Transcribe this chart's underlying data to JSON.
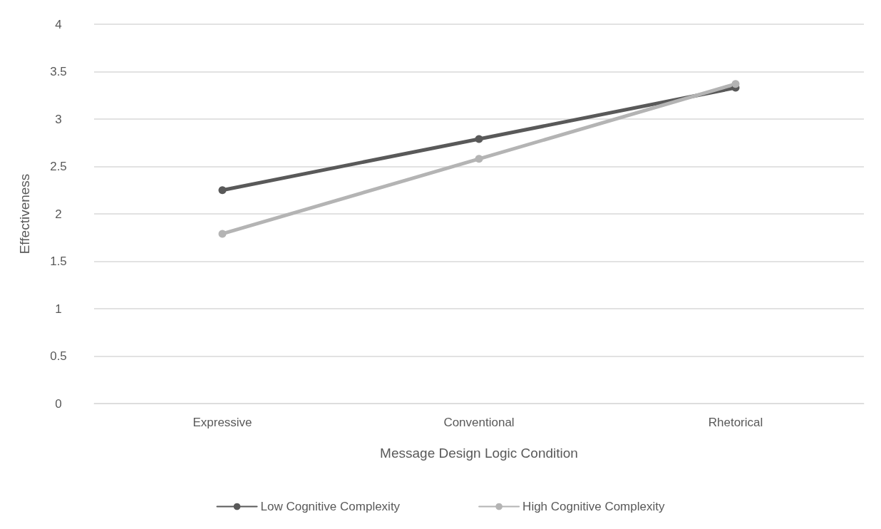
{
  "chart_data": {
    "type": "line",
    "xlabel": "Message Design Logic Condition",
    "ylabel": "Effectiveness",
    "categories": [
      "Expressive",
      "Conventional",
      "Rhetorical"
    ],
    "series": [
      {
        "name": "Low Cognitive Complexity",
        "color": "#595959",
        "values": [
          2.25,
          2.79,
          3.33
        ]
      },
      {
        "name": "High Cognitive Complexity",
        "color": "#b4b4b4",
        "values": [
          1.79,
          2.58,
          3.37
        ]
      }
    ],
    "ylim": [
      0,
      4
    ],
    "yticks": [
      0,
      0.5,
      1,
      1.5,
      2,
      2.5,
      3,
      3.5,
      4
    ],
    "grid": "y",
    "legend": "bottom",
    "marker": "circle",
    "line_style": "solid"
  }
}
